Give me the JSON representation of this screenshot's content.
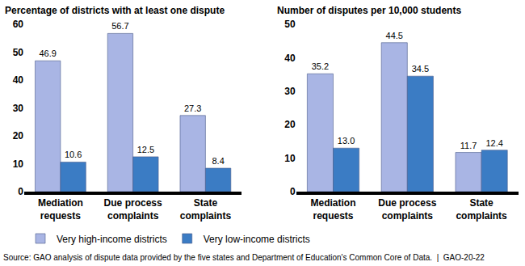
{
  "chart_data": [
    {
      "type": "bar",
      "title": "Percentage of districts with at least one dispute",
      "categories": [
        "Mediation requests",
        "Due process complaints",
        "State complaints"
      ],
      "series": [
        {
          "name": "Very high-income districts",
          "color": "#a9b5e4",
          "values": [
            46.9,
            56.7,
            27.3
          ]
        },
        {
          "name": "Very low-income districts",
          "color": "#3b7cc4",
          "values": [
            10.6,
            12.5,
            8.4
          ]
        }
      ],
      "ylim": [
        0,
        60
      ],
      "yticks": [
        0,
        10,
        20,
        30,
        40,
        50,
        60
      ],
      "grid": false,
      "data_labels": true,
      "legend": "bottom"
    },
    {
      "type": "bar",
      "title": "Number of disputes per 10,000 students",
      "categories": [
        "Mediation requests",
        "Due process complaints",
        "State complaints"
      ],
      "series": [
        {
          "name": "Very high-income districts",
          "color": "#a9b5e4",
          "values": [
            35.2,
            44.5,
            11.7
          ]
        },
        {
          "name": "Very low-income districts",
          "color": "#3b7cc4",
          "values": [
            13.0,
            34.5,
            12.4
          ],
          "value_labels": [
            "13.0",
            "34.5",
            "12.4"
          ]
        }
      ],
      "ylim": [
        0,
        50
      ],
      "yticks": [
        0,
        10,
        20,
        30,
        40,
        50
      ],
      "grid": false,
      "data_labels": true,
      "legend": "bottom",
      "annotations": [
        "Source: GAO analysis of dispute data provided by the five states and Department of Education's Common Core of Data.  |  GAO-20-22"
      ]
    }
  ]
}
